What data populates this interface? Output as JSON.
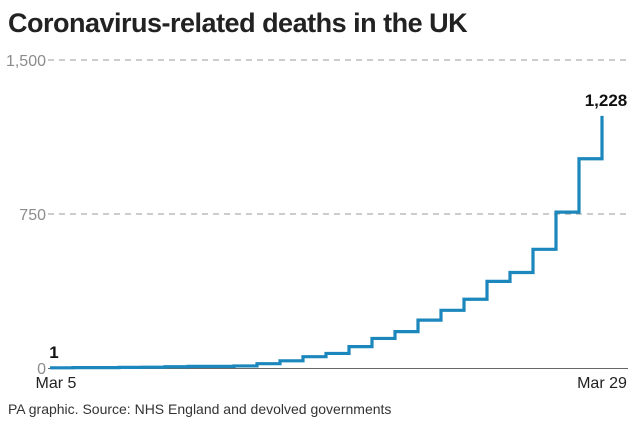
{
  "chart_data": {
    "type": "line",
    "step": true,
    "title": "Coronavirus-related deaths in the UK",
    "source": "PA graphic. Source: NHS England and devolved governments",
    "ylim": [
      0,
      1500
    ],
    "yticks": [
      {
        "value": 0,
        "label": "0"
      },
      {
        "value": 750,
        "label": "750"
      },
      {
        "value": 1500,
        "label": "1,500"
      }
    ],
    "grid": "dashed horizontal at 750 and 1500",
    "x_labels": {
      "start": "Mar 5",
      "end": "Mar 29"
    },
    "series": [
      {
        "color": "#1c87bd",
        "x": [
          "Mar 5",
          "Mar 6",
          "Mar 7",
          "Mar 8",
          "Mar 9",
          "Mar 10",
          "Mar 11",
          "Mar 12",
          "Mar 13",
          "Mar 14",
          "Mar 15",
          "Mar 16",
          "Mar 17",
          "Mar 18",
          "Mar 19",
          "Mar 20",
          "Mar 21",
          "Mar 22",
          "Mar 23",
          "Mar 24",
          "Mar 25",
          "Mar 26",
          "Mar 27",
          "Mar 28",
          "Mar 29"
        ],
        "values": [
          1,
          2,
          2,
          3,
          4,
          6,
          8,
          8,
          10,
          21,
          35,
          55,
          71,
          104,
          144,
          177,
          233,
          281,
          335,
          422,
          465,
          578,
          759,
          1019,
          1228
        ]
      }
    ],
    "data_labels": [
      {
        "index": 0,
        "label": "1"
      },
      {
        "index": 24,
        "label": "1,228"
      }
    ]
  }
}
